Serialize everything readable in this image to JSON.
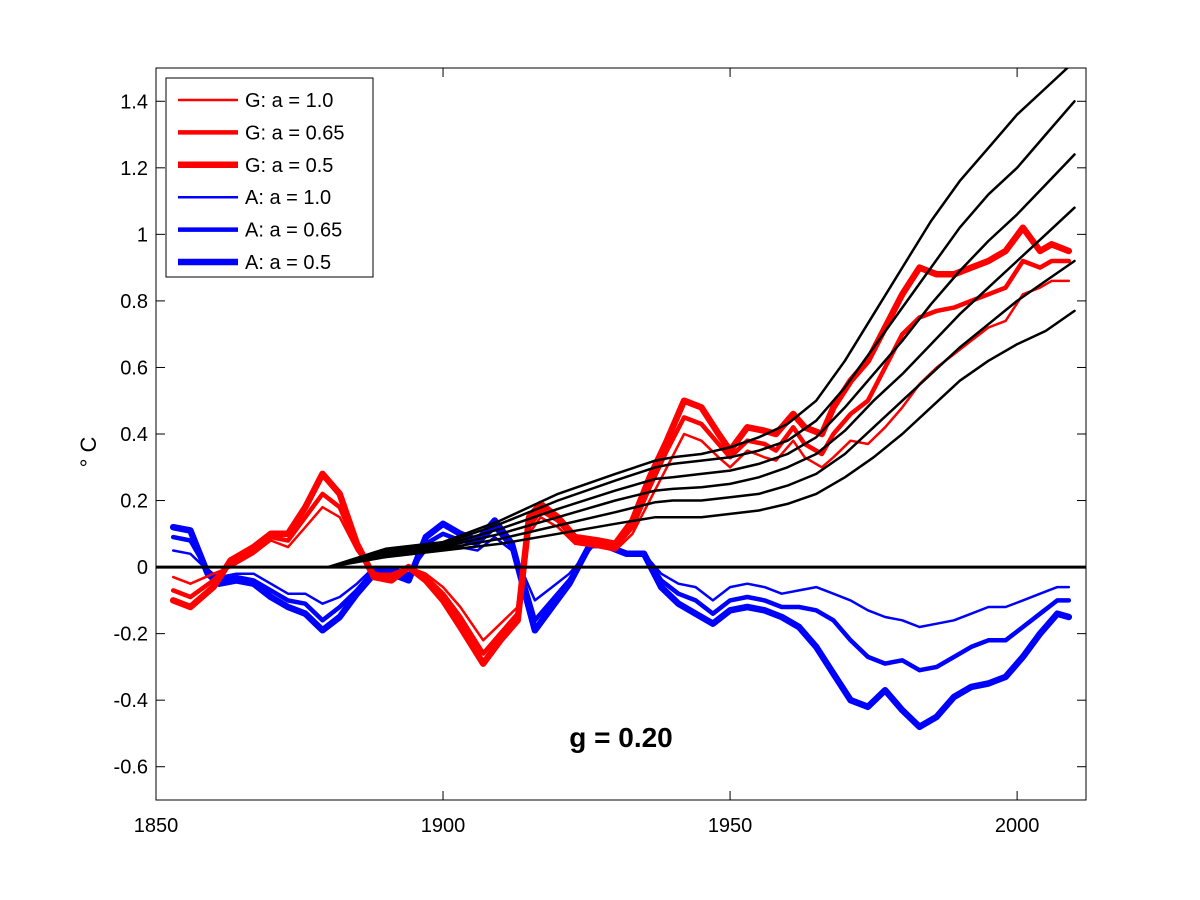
{
  "chart_data": {
    "type": "line",
    "title": "",
    "xlabel": "",
    "ylabel": "° C",
    "xlim": [
      1850,
      2012
    ],
    "ylim": [
      -0.7,
      1.5
    ],
    "xticks": [
      1850,
      1900,
      1950,
      2000
    ],
    "xtick_labels": [
      "1850",
      "1900",
      "1950",
      "2000"
    ],
    "yticks": [
      -0.6,
      -0.4,
      -0.2,
      0,
      0.2,
      0.4,
      0.6,
      0.8,
      1,
      1.2,
      1.4
    ],
    "ytick_labels": [
      "-0.6",
      "-0.4",
      "-0.2",
      "0",
      "0.2",
      "0.4",
      "0.6",
      "0.8",
      "1",
      "1.2",
      "1.4"
    ],
    "grid": false,
    "legend_position": "top-left",
    "zero_line": true,
    "annotation": {
      "text": "g = 0.20",
      "x": 1931,
      "y": -0.51
    },
    "colors": {
      "G": "#ff0000",
      "A": "#0000ff",
      "black": "#000000"
    },
    "series": [
      {
        "name": "G: a = 1.0",
        "group": "G",
        "color": "#ff0000",
        "width": 2.5,
        "x": [
          1853,
          1856,
          1860,
          1863,
          1867,
          1870,
          1873,
          1876,
          1879,
          1882,
          1885,
          1888,
          1891,
          1894,
          1897,
          1900,
          1903,
          1907,
          1910,
          1913,
          1915,
          1917,
          1920,
          1923,
          1927,
          1930,
          1933,
          1936,
          1939,
          1942,
          1945,
          1948,
          1950,
          1953,
          1956,
          1958,
          1961,
          1963,
          1966,
          1968,
          1971,
          1974,
          1977,
          1980,
          1983,
          1986,
          1989,
          1992,
          1995,
          1998,
          2001,
          2004,
          2006,
          2009
        ],
        "y": [
          -0.03,
          -0.05,
          -0.02,
          0,
          0.04,
          0.08,
          0.06,
          0.12,
          0.18,
          0.15,
          0.05,
          -0.02,
          -0.02,
          0.0,
          -0.02,
          -0.06,
          -0.12,
          -0.22,
          -0.17,
          -0.12,
          0.1,
          0.15,
          0.12,
          0.07,
          0.06,
          0.05,
          0.1,
          0.2,
          0.3,
          0.4,
          0.38,
          0.33,
          0.3,
          0.35,
          0.33,
          0.32,
          0.38,
          0.33,
          0.3,
          0.33,
          0.38,
          0.37,
          0.42,
          0.48,
          0.55,
          0.6,
          0.64,
          0.68,
          0.72,
          0.74,
          0.82,
          0.84,
          0.86,
          0.86
        ]
      },
      {
        "name": "G: a = 0.65",
        "group": "G",
        "color": "#ff0000",
        "width": 4.5,
        "x": [
          1853,
          1856,
          1860,
          1863,
          1867,
          1870,
          1873,
          1876,
          1879,
          1882,
          1885,
          1888,
          1891,
          1894,
          1897,
          1900,
          1903,
          1907,
          1910,
          1913,
          1915,
          1917,
          1920,
          1923,
          1927,
          1930,
          1933,
          1936,
          1939,
          1942,
          1945,
          1948,
          1950,
          1953,
          1956,
          1958,
          1961,
          1963,
          1966,
          1968,
          1971,
          1974,
          1977,
          1980,
          1983,
          1986,
          1989,
          1992,
          1995,
          1998,
          2001,
          2004,
          2006,
          2009
        ],
        "y": [
          -0.07,
          -0.09,
          -0.04,
          0.01,
          0.05,
          0.09,
          0.08,
          0.15,
          0.22,
          0.18,
          0.06,
          -0.02,
          -0.03,
          0.0,
          -0.03,
          -0.08,
          -0.15,
          -0.26,
          -0.2,
          -0.14,
          0.12,
          0.17,
          0.14,
          0.08,
          0.07,
          0.06,
          0.12,
          0.24,
          0.35,
          0.45,
          0.43,
          0.37,
          0.33,
          0.38,
          0.37,
          0.35,
          0.42,
          0.37,
          0.34,
          0.4,
          0.46,
          0.5,
          0.6,
          0.7,
          0.75,
          0.77,
          0.78,
          0.8,
          0.82,
          0.84,
          0.92,
          0.9,
          0.92,
          0.92
        ]
      },
      {
        "name": "G: a = 0.5",
        "group": "G",
        "color": "#ff0000",
        "width": 6.5,
        "x": [
          1853,
          1856,
          1860,
          1863,
          1867,
          1870,
          1873,
          1876,
          1879,
          1882,
          1885,
          1888,
          1891,
          1894,
          1897,
          1900,
          1903,
          1907,
          1910,
          1913,
          1915,
          1917,
          1920,
          1923,
          1927,
          1930,
          1933,
          1936,
          1939,
          1942,
          1945,
          1948,
          1950,
          1953,
          1956,
          1958,
          1961,
          1963,
          1966,
          1968,
          1971,
          1974,
          1977,
          1980,
          1983,
          1986,
          1989,
          1992,
          1995,
          1998,
          2001,
          2004,
          2006,
          2009
        ],
        "y": [
          -0.1,
          -0.12,
          -0.06,
          0.02,
          0.06,
          0.1,
          0.1,
          0.18,
          0.28,
          0.22,
          0.07,
          -0.03,
          -0.04,
          0.0,
          -0.04,
          -0.1,
          -0.18,
          -0.29,
          -0.22,
          -0.16,
          0.15,
          0.19,
          0.15,
          0.09,
          0.08,
          0.07,
          0.14,
          0.27,
          0.38,
          0.5,
          0.48,
          0.4,
          0.35,
          0.42,
          0.41,
          0.4,
          0.46,
          0.42,
          0.4,
          0.48,
          0.56,
          0.62,
          0.72,
          0.82,
          0.9,
          0.88,
          0.88,
          0.9,
          0.92,
          0.95,
          1.02,
          0.95,
          0.97,
          0.95
        ]
      },
      {
        "name": "A: a = 1.0",
        "group": "A",
        "color": "#0000ff",
        "width": 2.5,
        "x": [
          1853,
          1856,
          1859,
          1861,
          1864,
          1867,
          1870,
          1873,
          1876,
          1879,
          1882,
          1885,
          1888,
          1891,
          1894,
          1897,
          1900,
          1903,
          1906,
          1909,
          1912,
          1914,
          1916,
          1919,
          1922,
          1926,
          1929,
          1932,
          1935,
          1938,
          1941,
          1944,
          1947,
          1950,
          1953,
          1956,
          1959,
          1962,
          1965,
          1968,
          1971,
          1974,
          1977,
          1980,
          1983,
          1986,
          1989,
          1992,
          1995,
          1998,
          2001,
          2004,
          2007,
          2009
        ],
        "y": [
          0.05,
          0.04,
          -0.01,
          -0.03,
          -0.02,
          -0.02,
          -0.05,
          -0.08,
          -0.08,
          -0.11,
          -0.09,
          -0.05,
          0.0,
          0.0,
          -0.02,
          0.05,
          0.07,
          0.06,
          0.05,
          0.09,
          0.05,
          -0.02,
          -0.1,
          -0.06,
          -0.02,
          0.06,
          0.06,
          0.04,
          0.04,
          -0.02,
          -0.05,
          -0.06,
          -0.1,
          -0.06,
          -0.05,
          -0.06,
          -0.08,
          -0.07,
          -0.06,
          -0.08,
          -0.1,
          -0.13,
          -0.15,
          -0.16,
          -0.18,
          -0.17,
          -0.16,
          -0.14,
          -0.12,
          -0.12,
          -0.1,
          -0.08,
          -0.06,
          -0.06
        ]
      },
      {
        "name": "A: a = 0.65",
        "group": "A",
        "color": "#0000ff",
        "width": 4.5,
        "x": [
          1853,
          1856,
          1859,
          1861,
          1864,
          1867,
          1870,
          1873,
          1876,
          1879,
          1882,
          1885,
          1888,
          1891,
          1894,
          1897,
          1900,
          1903,
          1906,
          1909,
          1912,
          1914,
          1916,
          1919,
          1922,
          1926,
          1929,
          1932,
          1935,
          1938,
          1941,
          1944,
          1947,
          1950,
          1953,
          1956,
          1959,
          1962,
          1965,
          1968,
          1971,
          1974,
          1977,
          1980,
          1983,
          1986,
          1989,
          1992,
          1995,
          1998,
          2001,
          2004,
          2007,
          2009
        ],
        "y": [
          0.09,
          0.08,
          -0.01,
          -0.04,
          -0.03,
          -0.04,
          -0.07,
          -0.1,
          -0.11,
          -0.16,
          -0.12,
          -0.07,
          -0.01,
          -0.01,
          -0.03,
          0.07,
          0.1,
          0.08,
          0.07,
          0.12,
          0.06,
          -0.04,
          -0.16,
          -0.1,
          -0.04,
          0.07,
          0.06,
          0.04,
          0.04,
          -0.04,
          -0.08,
          -0.1,
          -0.14,
          -0.1,
          -0.09,
          -0.1,
          -0.12,
          -0.12,
          -0.13,
          -0.16,
          -0.22,
          -0.27,
          -0.29,
          -0.28,
          -0.31,
          -0.3,
          -0.27,
          -0.24,
          -0.22,
          -0.22,
          -0.18,
          -0.14,
          -0.1,
          -0.1
        ]
      },
      {
        "name": "A: a = 0.5",
        "group": "A",
        "color": "#0000ff",
        "width": 6.5,
        "x": [
          1853,
          1856,
          1859,
          1861,
          1864,
          1867,
          1870,
          1873,
          1876,
          1879,
          1882,
          1885,
          1888,
          1891,
          1894,
          1897,
          1900,
          1903,
          1906,
          1909,
          1912,
          1914,
          1916,
          1919,
          1922,
          1926,
          1929,
          1932,
          1935,
          1938,
          1941,
          1944,
          1947,
          1950,
          1953,
          1956,
          1959,
          1962,
          1965,
          1968,
          1971,
          1974,
          1977,
          1980,
          1983,
          1986,
          1989,
          1992,
          1995,
          1998,
          2001,
          2004,
          2007,
          2009
        ],
        "y": [
          0.12,
          0.11,
          -0.02,
          -0.05,
          -0.04,
          -0.05,
          -0.09,
          -0.12,
          -0.14,
          -0.19,
          -0.15,
          -0.08,
          -0.02,
          -0.02,
          -0.04,
          0.09,
          0.13,
          0.1,
          0.08,
          0.14,
          0.07,
          -0.06,
          -0.19,
          -0.12,
          -0.05,
          0.08,
          0.06,
          0.04,
          0.04,
          -0.06,
          -0.11,
          -0.14,
          -0.17,
          -0.13,
          -0.12,
          -0.13,
          -0.15,
          -0.18,
          -0.24,
          -0.32,
          -0.4,
          -0.42,
          -0.37,
          -0.43,
          -0.48,
          -0.45,
          -0.39,
          -0.36,
          -0.35,
          -0.33,
          -0.27,
          -0.2,
          -0.14,
          -0.15
        ]
      },
      {
        "name": "",
        "group": "black",
        "color": "#000000",
        "width": 2.5,
        "x": [
          1880,
          1890,
          1900,
          1910,
          1920,
          1930,
          1937,
          1940,
          1945,
          1950,
          1955,
          1960,
          1965,
          1970,
          1975,
          1980,
          1985,
          1990,
          1995,
          2000,
          2005,
          2010
        ],
        "y": [
          0.0,
          0.03,
          0.05,
          0.07,
          0.1,
          0.13,
          0.15,
          0.15,
          0.15,
          0.16,
          0.17,
          0.19,
          0.22,
          0.27,
          0.33,
          0.4,
          0.48,
          0.56,
          0.62,
          0.67,
          0.71,
          0.77
        ]
      },
      {
        "name": "",
        "group": "black",
        "color": "#000000",
        "width": 2.5,
        "x": [
          1880,
          1890,
          1900,
          1910,
          1920,
          1930,
          1937,
          1940,
          1945,
          1950,
          1955,
          1960,
          1965,
          1970,
          1975,
          1980,
          1985,
          1990,
          1995,
          2000,
          2005,
          2010
        ],
        "y": [
          0.0,
          0.035,
          0.055,
          0.085,
          0.125,
          0.165,
          0.195,
          0.2,
          0.2,
          0.21,
          0.22,
          0.245,
          0.28,
          0.34,
          0.42,
          0.5,
          0.58,
          0.66,
          0.73,
          0.8,
          0.86,
          0.92
        ]
      },
      {
        "name": "",
        "group": "black",
        "color": "#000000",
        "width": 2.5,
        "x": [
          1880,
          1890,
          1900,
          1910,
          1920,
          1930,
          1937,
          1940,
          1945,
          1950,
          1955,
          1960,
          1965,
          1970,
          1975,
          1980,
          1985,
          1990,
          1995,
          2000,
          2005,
          2010
        ],
        "y": [
          0.0,
          0.04,
          0.06,
          0.1,
          0.15,
          0.2,
          0.23,
          0.235,
          0.24,
          0.25,
          0.27,
          0.3,
          0.34,
          0.41,
          0.5,
          0.58,
          0.67,
          0.76,
          0.84,
          0.92,
          1.0,
          1.08
        ]
      },
      {
        "name": "",
        "group": "black",
        "color": "#000000",
        "width": 2.5,
        "x": [
          1880,
          1890,
          1900,
          1910,
          1920,
          1930,
          1937,
          1940,
          1945,
          1950,
          1955,
          1960,
          1965,
          1970,
          1975,
          1980,
          1985,
          1990,
          1995,
          2000,
          2005,
          2010
        ],
        "y": [
          0.0,
          0.045,
          0.065,
          0.115,
          0.175,
          0.23,
          0.265,
          0.27,
          0.28,
          0.29,
          0.31,
          0.34,
          0.39,
          0.48,
          0.58,
          0.68,
          0.79,
          0.89,
          0.98,
          1.06,
          1.15,
          1.24
        ]
      },
      {
        "name": "",
        "group": "black",
        "color": "#000000",
        "width": 2.5,
        "x": [
          1880,
          1890,
          1900,
          1910,
          1920,
          1930,
          1937,
          1940,
          1945,
          1950,
          1955,
          1960,
          1965,
          1970,
          1975,
          1980,
          1985,
          1990,
          1995,
          2000,
          2005,
          2010
        ],
        "y": [
          0.0,
          0.05,
          0.07,
          0.13,
          0.2,
          0.26,
          0.3,
          0.31,
          0.32,
          0.33,
          0.35,
          0.38,
          0.44,
          0.54,
          0.66,
          0.78,
          0.9,
          1.02,
          1.12,
          1.2,
          1.3,
          1.4
        ]
      },
      {
        "name": "",
        "group": "black",
        "color": "#000000",
        "width": 2.5,
        "x": [
          1880,
          1890,
          1900,
          1910,
          1920,
          1930,
          1937,
          1940,
          1945,
          1950,
          1955,
          1960,
          1965,
          1970,
          1975,
          1980,
          1985,
          1990,
          1995,
          2000,
          2005,
          2010
        ],
        "y": [
          0.0,
          0.055,
          0.075,
          0.14,
          0.22,
          0.28,
          0.32,
          0.33,
          0.34,
          0.36,
          0.39,
          0.43,
          0.5,
          0.62,
          0.76,
          0.9,
          1.04,
          1.16,
          1.26,
          1.36,
          1.44,
          1.52
        ]
      }
    ]
  }
}
